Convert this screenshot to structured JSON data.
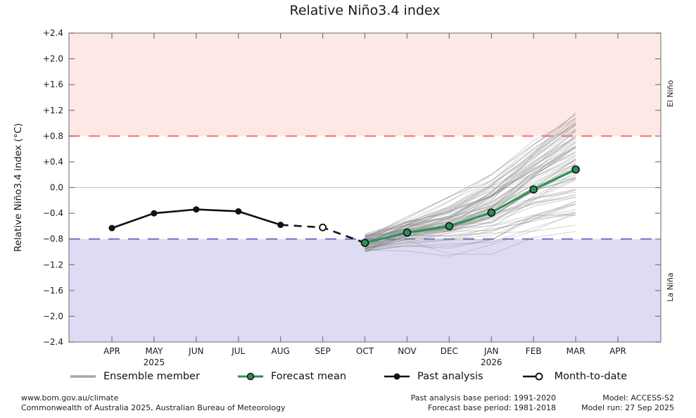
{
  "chart_data": {
    "type": "line",
    "title": "Relative Niño3.4 index",
    "ylabel": "Relative Niño3.4 index (°C)",
    "ylim": [
      -2.4,
      2.4
    ],
    "ytick_step": 0.4,
    "grid": "zero-line-only",
    "categories": [
      "APR",
      "MAY",
      "JUN",
      "JUL",
      "AUG",
      "SEP",
      "OCT",
      "NOV",
      "DEC",
      "JAN",
      "FEB",
      "MAR",
      "APR"
    ],
    "year_labels": [
      {
        "month_index": 1,
        "label": "2025"
      },
      {
        "month_index": 9,
        "label": "2026"
      }
    ],
    "bands": {
      "el_nino": {
        "label": "El Niño",
        "threshold": 0.8,
        "fill": "#fde8e6",
        "line": "#f4716d",
        "text": "#e8807c"
      },
      "la_nina": {
        "label": "La Niña",
        "threshold": -0.8,
        "fill": "#dedcf4",
        "line": "#7170c6",
        "text": "#7b7bc9"
      }
    },
    "zero_line": 0.0,
    "series": [
      {
        "name": "Past analysis",
        "month_start": 0,
        "values": [
          -0.63,
          -0.4,
          -0.34,
          -0.37,
          -0.58
        ],
        "color": "#111111",
        "style": "solid",
        "marker": "filled"
      },
      {
        "name": "Month-to-date",
        "month_start": 4,
        "values": [
          -0.58,
          -0.62,
          -0.86
        ],
        "color": "#111111",
        "style": "dashed",
        "marker": "open",
        "marker_months": [
          5
        ]
      },
      {
        "name": "Forecast mean",
        "month_start": 6,
        "values": [
          -0.86,
          -0.7,
          -0.6,
          -0.39,
          -0.03,
          0.28
        ],
        "color": "#2a9255",
        "style": "solid",
        "marker": "filled-outlined"
      }
    ],
    "ensemble": {
      "name": "Ensemble member",
      "month_start": 6,
      "month_end": 11,
      "count": 88,
      "start_spread": [
        -1.0,
        -0.72
      ],
      "end_spread": [
        -0.62,
        1.15
      ],
      "color": "#8c8c8c",
      "opacity": 0.38,
      "seed": 42
    }
  },
  "legend": {
    "items": [
      {
        "label": "Ensemble member",
        "swatch": "ensemble"
      },
      {
        "label": "Forecast mean",
        "swatch": "forecast"
      },
      {
        "label": "Past analysis",
        "swatch": "past"
      },
      {
        "label": "Month-to-date",
        "swatch": "mtd"
      }
    ]
  },
  "footer": {
    "left": [
      "www.bom.gov.au/climate",
      "Commonwealth of Australia 2025, Australian Bureau of Meteorology"
    ],
    "center": [
      "Past analysis base period: 1991-2020",
      "Forecast base period: 1981-2018"
    ],
    "right": [
      "Model: ACCESS-S2",
      "Model run: 27 Sep 2025"
    ]
  }
}
